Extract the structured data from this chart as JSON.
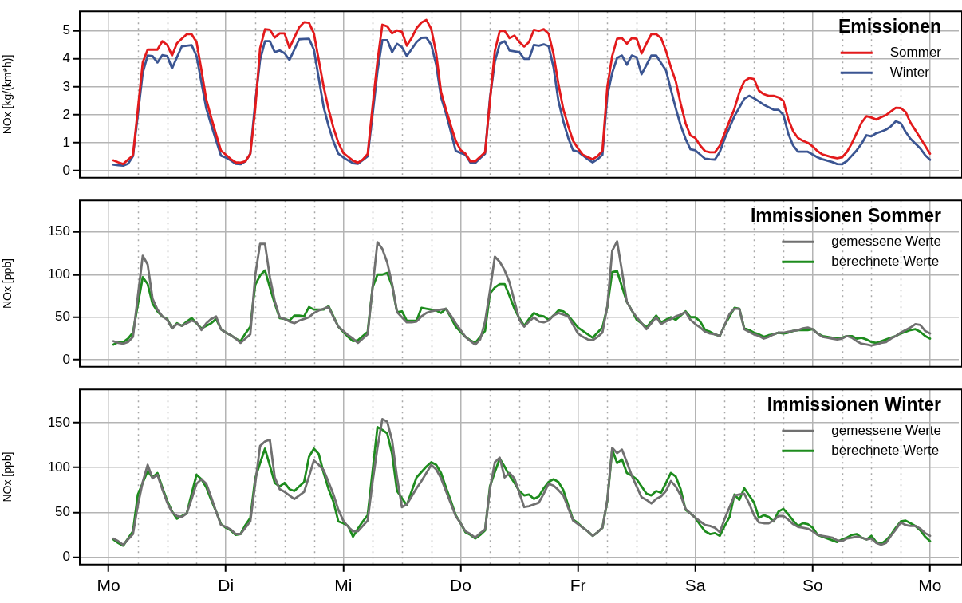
{
  "chart_data": [
    {
      "type": "line",
      "title": "Emissionen",
      "ylabel": "NOx [kg/(km*h)]",
      "ylim": [
        -0.25,
        5.7
      ],
      "yticks": [
        0,
        1,
        2,
        3,
        4,
        5
      ],
      "categories": [
        null,
        null,
        null,
        null,
        null,
        null,
        null,
        null,
        null,
        null,
        null,
        null,
        null,
        null,
        null,
        null,
        null,
        null,
        null,
        null,
        null,
        null,
        null,
        null,
        null,
        null,
        null,
        null,
        null,
        null,
        null,
        null,
        null,
        null,
        null,
        null,
        null,
        null,
        null,
        null,
        null,
        null,
        null,
        null,
        null,
        null,
        null,
        null,
        null,
        null,
        null,
        null,
        null,
        null,
        null,
        null,
        null,
        null,
        null,
        null,
        null,
        null,
        null,
        null,
        null,
        null,
        null,
        null,
        null,
        null,
        null,
        null,
        null,
        null,
        null,
        null,
        null,
        null,
        null,
        null,
        null,
        null,
        null,
        null,
        null,
        null,
        null,
        null,
        null,
        null,
        null,
        null,
        null,
        null,
        null,
        null,
        null,
        null,
        null,
        null,
        null,
        null,
        null,
        null,
        null,
        null,
        null,
        null,
        null,
        null,
        null,
        null,
        null,
        null,
        null,
        null,
        null,
        null,
        null,
        null,
        null,
        null,
        null,
        null,
        null,
        null,
        null,
        null,
        null,
        null,
        null,
        null,
        null,
        null,
        null,
        null,
        null,
        null,
        null,
        null,
        null,
        null,
        null,
        null,
        null,
        null,
        null,
        null,
        null,
        null,
        null,
        null,
        null,
        null,
        null,
        null,
        null,
        null,
        null,
        null,
        null,
        null,
        null,
        null,
        null,
        null,
        null,
        null,
        null
      ],
      "grid": true,
      "legend": "top right",
      "marker": "none",
      "line_style": "solid",
      "tick_labels": "y",
      "series": [
        {
          "name": "Sommer",
          "color": "#e31a1c",
          "values": [
            null,
            0.37,
            0.3,
            0.24,
            0.4,
            0.55,
            2.2,
            3.87,
            4.33,
            4.33,
            4.33,
            4.63,
            4.5,
            4.12,
            4.56,
            4.72,
            4.88,
            4.88,
            4.6,
            3.6,
            2.54,
            1.9,
            1.3,
            0.72,
            0.57,
            0.42,
            0.3,
            0.29,
            0.34,
            0.61,
            2.2,
            4.38,
            5.06,
            5.04,
            4.76,
            4.91,
            4.91,
            4.39,
            4.76,
            5.13,
            5.31,
            5.29,
            4.91,
            3.95,
            3.0,
            2.2,
            1.53,
            1.0,
            0.64,
            0.5,
            0.36,
            0.29,
            0.4,
            0.6,
            2.3,
            3.92,
            5.22,
            5.16,
            4.91,
            5.02,
            4.97,
            4.47,
            4.75,
            5.1,
            5.3,
            5.39,
            5.07,
            4.2,
            2.82,
            2.2,
            1.62,
            1.07,
            0.74,
            0.61,
            0.34,
            0.34,
            0.5,
            0.66,
            2.5,
            4.28,
            5.0,
            5.0,
            4.74,
            4.83,
            4.6,
            4.44,
            4.6,
            5.04,
            5.0,
            5.06,
            4.9,
            4.17,
            3.1,
            2.2,
            1.6,
            1.07,
            0.8,
            0.57,
            0.49,
            0.41,
            0.52,
            0.71,
            3.0,
            4.1,
            4.72,
            4.74,
            4.54,
            4.74,
            4.72,
            4.19,
            4.55,
            4.88,
            4.88,
            4.74,
            4.28,
            3.7,
            3.2,
            2.4,
            1.7,
            1.26,
            1.17,
            0.9,
            0.7,
            0.66,
            0.66,
            0.9,
            1.34,
            1.78,
            2.22,
            2.8,
            3.2,
            3.31,
            3.28,
            2.86,
            2.74,
            2.68,
            2.68,
            2.62,
            2.5,
            1.85,
            1.41,
            1.17,
            1.07,
            1.0,
            0.87,
            0.7,
            0.58,
            0.53,
            0.48,
            0.45,
            0.48,
            0.67,
            0.98,
            1.35,
            1.72,
            1.95,
            1.9,
            1.83,
            1.91,
            1.99,
            2.12,
            2.25,
            2.24,
            2.1,
            1.72,
            1.45,
            1.17,
            0.89,
            0.61
          ]
        },
        {
          "name": "Winter",
          "color": "#3b5592",
          "values": [
            null,
            0.22,
            0.2,
            0.18,
            0.25,
            0.52,
            2.0,
            3.5,
            4.12,
            4.1,
            3.87,
            4.13,
            4.1,
            3.66,
            4.06,
            4.45,
            4.47,
            4.49,
            4.1,
            3.16,
            2.22,
            1.64,
            1.08,
            0.54,
            0.47,
            0.37,
            0.25,
            0.23,
            0.34,
            0.61,
            2.45,
            3.96,
            4.63,
            4.63,
            4.24,
            4.3,
            4.2,
            3.96,
            4.33,
            4.7,
            4.71,
            4.72,
            4.33,
            3.3,
            2.27,
            1.6,
            1.04,
            0.61,
            0.48,
            0.37,
            0.27,
            0.25,
            0.38,
            0.52,
            2.0,
            3.55,
            4.67,
            4.67,
            4.24,
            4.54,
            4.42,
            4.1,
            4.35,
            4.6,
            4.75,
            4.76,
            4.5,
            3.8,
            2.63,
            2.05,
            1.4,
            0.71,
            0.64,
            0.57,
            0.29,
            0.28,
            0.45,
            0.61,
            2.6,
            3.9,
            4.54,
            4.63,
            4.3,
            4.27,
            4.24,
            4.0,
            4.0,
            4.5,
            4.47,
            4.52,
            4.45,
            3.7,
            2.5,
            1.77,
            1.18,
            0.73,
            0.68,
            0.55,
            0.41,
            0.3,
            0.41,
            0.57,
            2.68,
            3.5,
            4.03,
            4.12,
            3.79,
            4.12,
            4.05,
            3.45,
            3.78,
            4.12,
            4.12,
            3.85,
            3.59,
            2.9,
            2.23,
            1.62,
            1.14,
            0.77,
            0.73,
            0.58,
            0.43,
            0.41,
            0.4,
            0.67,
            1.15,
            1.55,
            1.95,
            2.26,
            2.57,
            2.68,
            2.59,
            2.48,
            2.36,
            2.27,
            2.18,
            2.18,
            2.0,
            1.33,
            0.9,
            0.68,
            0.68,
            0.68,
            0.58,
            0.48,
            0.41,
            0.36,
            0.31,
            0.24,
            0.23,
            0.35,
            0.54,
            0.73,
            0.97,
            1.27,
            1.23,
            1.34,
            1.4,
            1.47,
            1.59,
            1.77,
            1.7,
            1.39,
            1.14,
            0.97,
            0.8,
            0.56,
            0.39
          ]
        }
      ]
    },
    {
      "type": "line",
      "title": "Immissionen Sommer",
      "ylabel": "NOx [ppb]",
      "ylim": [
        -8,
        187
      ],
      "yticks": [
        0,
        50,
        100,
        150
      ],
      "categories": [
        null,
        null,
        null,
        null,
        null,
        null,
        null,
        null,
        null,
        null,
        null,
        null,
        null,
        null,
        null,
        null,
        null,
        null,
        null,
        null,
        null,
        null,
        null,
        null,
        null,
        null,
        null,
        null,
        null,
        null,
        null,
        null,
        null,
        null,
        null,
        null,
        null,
        null,
        null,
        null,
        null,
        null,
        null,
        null,
        null,
        null,
        null,
        null,
        null,
        null,
        null,
        null,
        null,
        null,
        null,
        null,
        null,
        null,
        null,
        null,
        null,
        null,
        null,
        null,
        null,
        null,
        null,
        null,
        null,
        null,
        null,
        null,
        null,
        null,
        null,
        null,
        null,
        null,
        null,
        null,
        null,
        null,
        null,
        null,
        null,
        null,
        null,
        null,
        null,
        null,
        null,
        null,
        null,
        null,
        null,
        null,
        null,
        null,
        null,
        null,
        null,
        null,
        null,
        null,
        null,
        null,
        null,
        null,
        null,
        null,
        null,
        null,
        null,
        null,
        null,
        null,
        null,
        null,
        null,
        null,
        null,
        null,
        null,
        null,
        null,
        null,
        null,
        null,
        null,
        null,
        null,
        null,
        null,
        null,
        null,
        null,
        null,
        null,
        null,
        null,
        null,
        null,
        null,
        null,
        null,
        null,
        null,
        null,
        null,
        null,
        null,
        null,
        null,
        null,
        null,
        null,
        null,
        null,
        null,
        null,
        null,
        null,
        null,
        null,
        null,
        null,
        null,
        null,
        null
      ],
      "grid": true,
      "legend": "top right",
      "marker": "none",
      "line_style": "solid",
      "tick_labels": "y",
      "series": [
        {
          "name": "gemessene Werte",
          "color": "#707070",
          "values": [
            null,
            22,
            20,
            19,
            21,
            27,
            75,
            122,
            112,
            72,
            59,
            51,
            47,
            37,
            42,
            40,
            43,
            46,
            44,
            35,
            43,
            48,
            51,
            36,
            32,
            29,
            25,
            20,
            25,
            30,
            99,
            136,
            136,
            97,
            69,
            50,
            48,
            45,
            43,
            46,
            48,
            50,
            55,
            58,
            60,
            62,
            50,
            39,
            34,
            29,
            25,
            20,
            25,
            30,
            85,
            138,
            130,
            114,
            89,
            56,
            50,
            44,
            44,
            45,
            51,
            55,
            57,
            58,
            59,
            60,
            52,
            43,
            35,
            27,
            22,
            18,
            24,
            45,
            81,
            121,
            115,
            105,
            91,
            69,
            47,
            39,
            45,
            50,
            45,
            44,
            46,
            52,
            55,
            53,
            51,
            41,
            31,
            27,
            24,
            23,
            27,
            32,
            63,
            128,
            139,
            104,
            68,
            58,
            50,
            43,
            36,
            43,
            50,
            42,
            45,
            48,
            51,
            53,
            56,
            47,
            42,
            38,
            33,
            31,
            30,
            28,
            41,
            54,
            60,
            60,
            36,
            33,
            30,
            28,
            25,
            27,
            30,
            32,
            32,
            33,
            34,
            35,
            37,
            38,
            36,
            31,
            27,
            26,
            25,
            24,
            25,
            28,
            26,
            22,
            19,
            18,
            17,
            18,
            20,
            21,
            25,
            28,
            32,
            35,
            38,
            42,
            41,
            34,
            31
          ]
        },
        {
          "name": "berechnete Werte",
          "color": "#1e8c1e",
          "values": [
            null,
            18,
            21,
            21,
            25,
            32,
            65,
            97,
            89,
            66,
            57,
            51,
            48,
            37,
            43,
            40,
            45,
            49,
            43,
            37,
            40,
            43,
            48,
            36,
            32,
            29,
            25,
            22,
            31,
            39,
            88,
            99,
            105,
            85,
            66,
            49,
            48,
            46,
            52,
            52,
            51,
            62,
            59,
            59,
            59,
            63,
            51,
            39,
            33,
            27,
            22,
            23,
            28,
            33,
            85,
            100,
            100,
            102,
            87,
            56,
            57,
            46,
            46,
            46,
            61,
            60,
            59,
            58,
            55,
            60,
            50,
            39,
            33,
            27,
            23,
            20,
            27,
            34,
            78,
            85,
            89,
            89,
            75,
            60,
            49,
            40,
            48,
            55,
            52,
            51,
            47,
            52,
            58,
            57,
            52,
            45,
            38,
            34,
            30,
            26,
            32,
            38,
            62,
            103,
            104,
            86,
            68,
            58,
            47,
            43,
            38,
            45,
            52,
            44,
            47,
            50,
            47,
            52,
            57,
            50,
            50,
            45,
            35,
            33,
            30,
            28,
            41,
            51,
            61,
            60,
            37,
            35,
            32,
            30,
            27,
            29,
            30,
            32,
            31,
            32,
            34,
            35,
            35,
            35,
            36,
            31,
            28,
            27,
            26,
            25,
            26,
            28,
            28,
            25,
            26,
            24,
            21,
            20,
            22,
            24,
            26,
            28,
            31,
            33,
            35,
            36,
            33,
            28,
            25
          ]
        }
      ]
    },
    {
      "type": "line",
      "title": "Immissionen Winter",
      "ylabel": "NOx [ppb]",
      "ylim": [
        -8,
        187
      ],
      "yticks": [
        0,
        50,
        100,
        150
      ],
      "categories": [
        "Mo",
        null,
        null,
        null,
        null,
        null,
        null,
        null,
        null,
        null,
        null,
        null,
        null,
        null,
        null,
        null,
        null,
        null,
        null,
        null,
        null,
        null,
        null,
        null,
        "Di",
        null,
        null,
        null,
        null,
        null,
        null,
        null,
        null,
        null,
        null,
        null,
        null,
        null,
        null,
        null,
        null,
        null,
        null,
        null,
        null,
        null,
        null,
        null,
        "Mi",
        null,
        null,
        null,
        null,
        null,
        null,
        null,
        null,
        null,
        null,
        null,
        null,
        null,
        null,
        null,
        null,
        null,
        null,
        null,
        null,
        null,
        null,
        null,
        "Do",
        null,
        null,
        null,
        null,
        null,
        null,
        null,
        null,
        null,
        null,
        null,
        null,
        null,
        null,
        null,
        null,
        null,
        null,
        null,
        null,
        null,
        null,
        null,
        "Fr",
        null,
        null,
        null,
        null,
        null,
        null,
        null,
        null,
        null,
        null,
        null,
        null,
        null,
        null,
        null,
        null,
        null,
        null,
        null,
        null,
        null,
        null,
        null,
        "Sa",
        null,
        null,
        null,
        null,
        null,
        null,
        null,
        null,
        null,
        null,
        null,
        null,
        null,
        null,
        null,
        null,
        null,
        null,
        null,
        null,
        null,
        null,
        null,
        "So",
        null,
        null,
        null,
        null,
        null,
        null,
        null,
        null,
        null,
        null,
        null,
        null,
        null,
        null,
        null,
        null,
        null,
        null,
        null,
        null,
        null,
        null,
        null,
        "Mo"
      ],
      "grid": true,
      "legend": "top right",
      "marker": "none",
      "line_style": "solid",
      "series": [
        {
          "name": "gemessene Werte",
          "color": "#707070",
          "values": [
            null,
            21,
            18,
            14,
            20,
            26,
            58,
            84,
            103,
            88,
            92,
            76,
            61,
            50,
            46,
            45,
            49,
            65,
            82,
            87,
            82,
            67,
            51,
            36,
            34,
            31,
            26,
            26,
            33,
            40,
            82,
            124,
            129,
            131,
            89,
            76,
            73,
            69,
            65,
            69,
            73,
            90,
            108,
            103,
            97,
            84,
            70,
            53,
            41,
            34,
            29,
            29,
            35,
            41,
            84,
            122,
            154,
            151,
            130,
            89,
            56,
            59,
            68,
            77,
            85,
            94,
            103,
            98,
            88,
            74,
            60,
            46,
            38,
            29,
            26,
            22,
            27,
            31,
            76,
            106,
            111,
            89,
            94,
            88,
            72,
            56,
            57,
            59,
            61,
            71,
            82,
            80,
            75,
            69,
            55,
            41,
            37,
            33,
            29,
            24,
            28,
            33,
            64,
            122,
            116,
            120,
            106,
            91,
            79,
            67,
            64,
            60,
            65,
            68,
            74,
            85,
            79,
            69,
            54,
            49,
            44,
            40,
            36,
            35,
            33,
            28,
            43,
            56,
            69,
            70,
            71,
            60,
            47,
            39,
            38,
            38,
            41,
            46,
            46,
            42,
            37,
            34,
            33,
            32,
            29,
            25,
            24,
            23,
            22,
            19,
            18,
            21,
            22,
            23,
            22,
            20,
            21,
            16,
            14,
            16,
            24,
            31,
            39,
            36,
            35,
            35,
            32,
            27,
            24
          ]
        },
        {
          "name": "berechnete Werte",
          "color": "#1e8c1e",
          "values": [
            null,
            20,
            16,
            13,
            21,
            29,
            70,
            83,
            96,
            89,
            94,
            78,
            63,
            51,
            43,
            46,
            49,
            71,
            92,
            87,
            78,
            64,
            51,
            37,
            33,
            30,
            25,
            26,
            36,
            44,
            88,
            105,
            121,
            102,
            83,
            79,
            83,
            76,
            74,
            79,
            84,
            112,
            121,
            115,
            94,
            76,
            62,
            40,
            38,
            35,
            23,
            32,
            40,
            47,
            96,
            145,
            142,
            138,
            115,
            74,
            66,
            58,
            74,
            89,
            95,
            101,
            106,
            103,
            94,
            78,
            63,
            47,
            38,
            28,
            25,
            21,
            25,
            30,
            79,
            95,
            110,
            101,
            91,
            83,
            74,
            69,
            70,
            65,
            68,
            77,
            84,
            87,
            84,
            75,
            58,
            42,
            38,
            33,
            29,
            24,
            28,
            33,
            63,
            120,
            105,
            109,
            94,
            91,
            87,
            79,
            71,
            69,
            74,
            72,
            83,
            94,
            90,
            76,
            53,
            49,
            44,
            36,
            29,
            26,
            27,
            24,
            35,
            45,
            70,
            64,
            77,
            69,
            61,
            44,
            47,
            45,
            40,
            51,
            54,
            48,
            41,
            35,
            38,
            37,
            33,
            25,
            23,
            21,
            19,
            17,
            20,
            22,
            25,
            26,
            22,
            20,
            24,
            17,
            15,
            19,
            25,
            33,
            40,
            41,
            38,
            35,
            30,
            23,
            18
          ]
        }
      ]
    }
  ]
}
